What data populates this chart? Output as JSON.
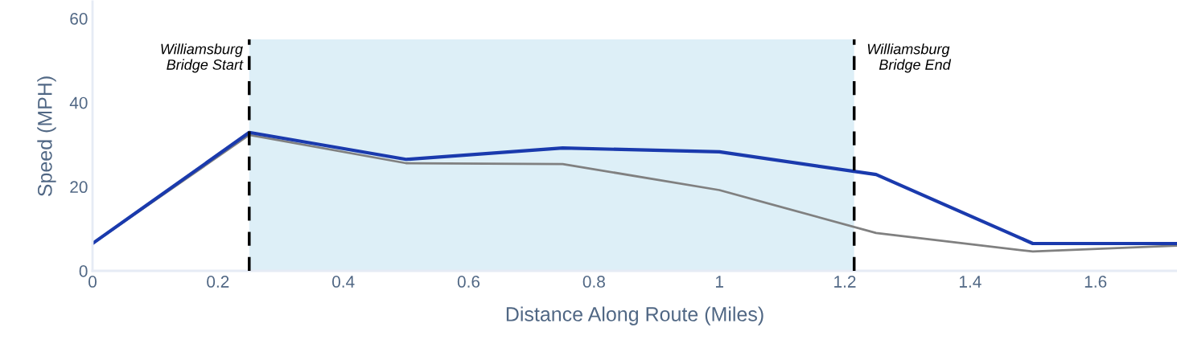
{
  "chart_data": {
    "type": "line",
    "xlabel": "Distance Along Route (Miles)",
    "ylabel": "Speed (MPH)",
    "x": [
      0,
      0.25,
      0.5,
      0.75,
      1.0,
      1.25,
      1.5,
      1.73
    ],
    "series": [
      {
        "color": "#808080",
        "values": [
          6.5,
          32.3,
          25.6,
          25.4,
          19.2,
          9.0,
          4.6,
          6.0
        ]
      },
      {
        "color": "#1a3aad",
        "values": [
          6.5,
          32.9,
          26.5,
          29.2,
          28.3,
          22.9,
          6.5,
          6.5
        ]
      }
    ],
    "xlim": [
      0,
      1.73
    ],
    "ylim": [
      0,
      64
    ],
    "xticks": [
      0,
      0.2,
      0.4,
      0.6,
      0.8,
      1,
      1.2,
      1.4,
      1.6
    ],
    "yticks": [
      0,
      20,
      40,
      60
    ],
    "grid": false,
    "legend": false,
    "marker": "none",
    "line_style": "solid",
    "bands": [
      {
        "axis": "x",
        "from": 0.25,
        "to": 1.215,
        "color": "#cfe8f3"
      }
    ],
    "ref_lines": [
      {
        "axis": "x",
        "value": 0.25,
        "label": "Williamsburg\nBridge Start",
        "color": "#000000",
        "line_style": "dashed"
      },
      {
        "axis": "x",
        "value": 1.215,
        "label": "Williamsburg\n   Bridge End",
        "color": "#000000",
        "line_style": "dashed"
      }
    ]
  }
}
